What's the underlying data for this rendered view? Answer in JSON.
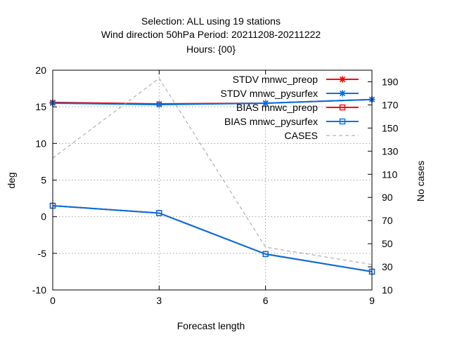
{
  "title": {
    "line1": "Selection: ALL using    19 stations",
    "line2": "Wind direction 50hPa   Period: 20211208-20211222",
    "line3": "Hours: {00}"
  },
  "chart_data": {
    "type": "line",
    "xlabel": "Forecast length",
    "ylabel": "deg",
    "y2label": "No cases",
    "xlim": [
      0,
      9
    ],
    "ylim": [
      -10,
      20
    ],
    "y2lim": [
      10,
      200
    ],
    "xticks": [
      "0",
      "3",
      "6",
      "9"
    ],
    "yticks": [
      "-10",
      "-5",
      "0",
      "5",
      "10",
      "15",
      "20"
    ],
    "y2ticks": [
      "10",
      "30",
      "50",
      "70",
      "90",
      "110",
      "130",
      "150",
      "170",
      "190"
    ],
    "grid": true,
    "legend_position": "top-right",
    "series": [
      {
        "name": "STDV mnwc_preop",
        "axis": "y1",
        "color": "#ff0000",
        "marker": "x-star",
        "x": [
          0,
          3,
          6,
          9
        ],
        "y": [
          15.6,
          15.4,
          15.5,
          16.0
        ]
      },
      {
        "name": "STDV mnwc_pysurfex",
        "axis": "y1",
        "color": "#0072e6",
        "marker": "x-star",
        "x": [
          0,
          3,
          6,
          9
        ],
        "y": [
          15.5,
          15.3,
          15.5,
          16.0
        ]
      },
      {
        "name": "BIAS mnwc_preop",
        "axis": "y1",
        "color": "#ff0000",
        "marker": "square",
        "x": [
          0,
          3,
          6,
          9
        ],
        "y": [
          1.5,
          0.5,
          -5.1,
          -7.5
        ]
      },
      {
        "name": "BIAS mnwc_pysurfex",
        "axis": "y1",
        "color": "#0072e6",
        "marker": "square",
        "x": [
          0,
          3,
          6,
          9
        ],
        "y": [
          1.5,
          0.5,
          -5.1,
          -7.5
        ]
      },
      {
        "name": "CASES",
        "axis": "y2",
        "color": "#a0a0a0",
        "marker": "none",
        "dashed": true,
        "x": [
          0,
          3,
          6,
          9
        ],
        "y": [
          124,
          193,
          47,
          32
        ]
      }
    ]
  }
}
